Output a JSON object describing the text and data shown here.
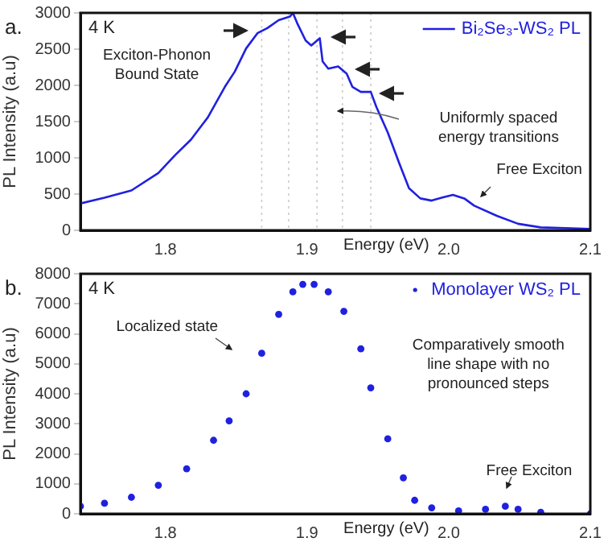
{
  "chart_data": [
    {
      "type": "line",
      "title": "a.",
      "subtitle": "4 K",
      "xlabel": "Energy (eV)",
      "ylabel": "PL Intensity (a.u)",
      "x": [
        1.74,
        1.757,
        1.776,
        1.795,
        1.807,
        1.818,
        1.83,
        1.842,
        1.849,
        1.857,
        1.865,
        1.872,
        1.88,
        1.888,
        1.89,
        1.893,
        1.899,
        1.903,
        1.909,
        1.911,
        1.915,
        1.922,
        1.928,
        1.932,
        1.938,
        1.945,
        1.949,
        1.957,
        1.965,
        1.972,
        1.98,
        1.988,
        1.995,
        2.003,
        2.011,
        2.018,
        2.034,
        2.049,
        2.065,
        2.1
      ],
      "series": [
        {
          "name": "Bi₂Se₃-WS₂ PL",
          "color": "#2020e0",
          "values": [
            370,
            450,
            550,
            790,
            1040,
            1250,
            1560,
            1980,
            2190,
            2510,
            2720,
            2790,
            2900,
            2950,
            3000,
            2860,
            2620,
            2550,
            2650,
            2330,
            2230,
            2260,
            2160,
            1980,
            1910,
            1910,
            1700,
            1350,
            930,
            580,
            440,
            410,
            450,
            490,
            440,
            340,
            200,
            90,
            40,
            20
          ]
        }
      ],
      "xlim": [
        1.74,
        2.1
      ],
      "xticks": [
        1.8,
        1.9,
        {
          "value": 2,
          "label": "2.0"
        },
        2.1
      ],
      "ylim": [
        0,
        3000
      ],
      "yticks": [
        0,
        500,
        1000,
        1500,
        2000,
        2500,
        3000
      ],
      "ref_lines": [
        {
          "axis": "x",
          "value": 1.868,
          "color": "#cccccc",
          "line_style": "dotted"
        },
        {
          "axis": "x",
          "value": 1.887,
          "color": "#cccccc",
          "line_style": "dotted"
        },
        {
          "axis": "x",
          "value": 1.907,
          "color": "#cccccc",
          "line_style": "dotted"
        },
        {
          "axis": "x",
          "value": 1.925,
          "color": "#cccccc",
          "line_style": "dotted"
        },
        {
          "axis": "x",
          "value": 1.945,
          "color": "#cccccc",
          "line_style": "dotted"
        }
      ],
      "annotations": [
        "Exciton-Phonon\nBound State",
        "Uniformly spaced\nenergy transitions",
        "Free Exciton"
      ],
      "legend": "top right",
      "grid": false,
      "marker": "none",
      "line_style": "solid"
    },
    {
      "type": "scatter",
      "title": "b.",
      "subtitle": "4 K",
      "xlabel": "Energy (eV)",
      "ylabel": "PL Intensity (a.u)",
      "x": [
        1.74,
        1.757,
        1.776,
        1.795,
        1.815,
        1.834,
        1.845,
        1.857,
        1.868,
        1.88,
        1.89,
        1.897,
        1.905,
        1.915,
        1.926,
        1.938,
        1.945,
        1.957,
        1.968,
        1.976,
        1.988,
        2.007,
        2.026,
        2.04,
        2.049,
        2.065,
        2.1
      ],
      "series": [
        {
          "name": "Monolayer WS₂ PL",
          "color": "#2020e0",
          "values": [
            250,
            350,
            550,
            950,
            1500,
            2450,
            3100,
            4000,
            5350,
            6650,
            7400,
            7650,
            7650,
            7400,
            6750,
            5500,
            4200,
            2500,
            1200,
            450,
            200,
            100,
            150,
            250,
            150,
            50,
            0
          ]
        }
      ],
      "xlim": [
        1.74,
        2.1
      ],
      "xticks": [
        1.8,
        1.9,
        {
          "value": 2,
          "label": "2.0"
        },
        2.1
      ],
      "ylim": [
        0,
        8000
      ],
      "yticks": [
        0,
        1000,
        2000,
        3000,
        4000,
        5000,
        6000,
        7000,
        8000
      ],
      "annotations": [
        "Localized state",
        "Comparatively smooth\nline shape with no\npronounced steps",
        "Free Exciton"
      ],
      "legend": "top right",
      "grid": false,
      "marker": "circle"
    }
  ]
}
